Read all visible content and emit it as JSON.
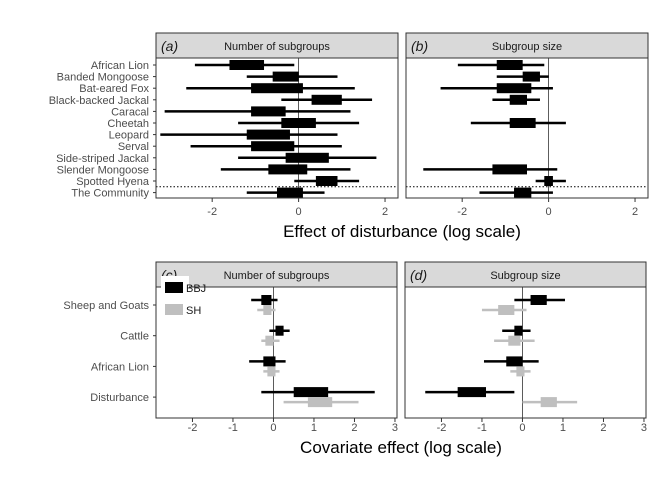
{
  "chart_data": [
    {
      "type": "forest",
      "xlabel": "Effect of disturbance (log scale)",
      "categories": [
        "African Lion",
        "Banded Mongoose",
        "Bat-eared Fox",
        "Black-backed Jackal",
        "Caracal",
        "Cheetah",
        "Leopard",
        "Serval",
        "Side-striped Jackal",
        "Slender Mongoose",
        "Spotted Hyena",
        "The Community"
      ],
      "xlim": [
        -3.3,
        2.3
      ],
      "xticks": [
        -2,
        0,
        2
      ],
      "separator_after_index": 10,
      "panels": [
        {
          "letter": "(a)",
          "title": "Number of subgroups",
          "rows": [
            {
              "estimate": -1.2,
              "inner": [
                -1.6,
                -0.8
              ],
              "outer": [
                -2.4,
                -0.1
              ]
            },
            {
              "estimate": -0.3,
              "inner": [
                -0.6,
                0.0
              ],
              "outer": [
                -1.2,
                0.9
              ]
            },
            {
              "estimate": -0.5,
              "inner": [
                -1.1,
                0.1
              ],
              "outer": [
                -2.6,
                1.3
              ]
            },
            {
              "estimate": 0.6,
              "inner": [
                0.3,
                1.0
              ],
              "outer": [
                -0.4,
                1.7
              ]
            },
            {
              "estimate": -0.7,
              "inner": [
                -1.1,
                -0.3
              ],
              "outer": [
                -3.1,
                1.2
              ]
            },
            {
              "estimate": 0.0,
              "inner": [
                -0.4,
                0.4
              ],
              "outer": [
                -1.4,
                1.4
              ]
            },
            {
              "estimate": -0.7,
              "inner": [
                -1.2,
                -0.2
              ],
              "outer": [
                -3.2,
                0.9
              ]
            },
            {
              "estimate": -0.6,
              "inner": [
                -1.1,
                -0.1
              ],
              "outer": [
                -2.5,
                1.0
              ]
            },
            {
              "estimate": 0.2,
              "inner": [
                -0.3,
                0.7
              ],
              "outer": [
                -1.4,
                1.8
              ]
            },
            {
              "estimate": -0.3,
              "inner": [
                -0.7,
                0.2
              ],
              "outer": [
                -1.8,
                1.2
              ]
            },
            {
              "estimate": 0.6,
              "inner": [
                0.4,
                0.9
              ],
              "outer": [
                -0.1,
                1.4
              ]
            },
            {
              "estimate": -0.2,
              "inner": [
                -0.5,
                0.1
              ],
              "outer": [
                -1.2,
                0.6
              ]
            }
          ]
        },
        {
          "letter": "(b)",
          "title": "Subgroup size",
          "rows": [
            {
              "estimate": -0.9,
              "inner": [
                -1.2,
                -0.6
              ],
              "outer": [
                -2.1,
                -0.1
              ]
            },
            {
              "estimate": -0.4,
              "inner": [
                -0.6,
                -0.2
              ],
              "outer": [
                -1.2,
                0.0
              ]
            },
            {
              "estimate": -0.8,
              "inner": [
                -1.2,
                -0.4
              ],
              "outer": [
                -2.5,
                0.1
              ]
            },
            {
              "estimate": -0.7,
              "inner": [
                -0.9,
                -0.5
              ],
              "outer": [
                -1.3,
                -0.2
              ]
            },
            {
              "estimate": null,
              "inner": null,
              "outer": null
            },
            {
              "estimate": -0.6,
              "inner": [
                -0.9,
                -0.3
              ],
              "outer": [
                -1.8,
                0.4
              ]
            },
            {
              "estimate": null,
              "inner": null,
              "outer": null
            },
            {
              "estimate": null,
              "inner": null,
              "outer": null
            },
            {
              "estimate": null,
              "inner": null,
              "outer": null
            },
            {
              "estimate": -0.9,
              "inner": [
                -1.3,
                -0.5
              ],
              "outer": [
                -2.9,
                0.2
              ]
            },
            {
              "estimate": 0.0,
              "inner": [
                -0.1,
                0.1
              ],
              "outer": [
                -0.3,
                0.4
              ]
            },
            {
              "estimate": -0.6,
              "inner": [
                -0.8,
                -0.4
              ],
              "outer": [
                -1.6,
                0.1
              ]
            }
          ]
        }
      ]
    },
    {
      "type": "forest",
      "xlabel": "Covariate effect (log scale)",
      "categories": [
        "Sheep and Goats",
        "Cattle",
        "African Lion",
        "Disturbance"
      ],
      "xlim": [
        -2.9,
        3.05
      ],
      "xticks": [
        -2,
        -1,
        0,
        1,
        2,
        3
      ],
      "legend": {
        "placement": "top-left",
        "entries": [
          {
            "name": "BBJ",
            "color": "#000000"
          },
          {
            "name": "SH",
            "color": "#bfbfbf"
          }
        ]
      },
      "panels": [
        {
          "letter": "(c)",
          "title": "Number of subgroups",
          "rows": [
            {
              "BBJ": {
                "estimate": -0.2,
                "inner": [
                  -0.3,
                  -0.05
                ],
                "outer": [
                  -0.55,
                  0.1
                ]
              },
              "SH": {
                "estimate": -0.15,
                "inner": [
                  -0.25,
                  -0.05
                ],
                "outer": [
                  -0.4,
                  0.05
                ]
              }
            },
            {
              "BBJ": {
                "estimate": 0.15,
                "inner": [
                  0.05,
                  0.25
                ],
                "outer": [
                  -0.1,
                  0.4
                ]
              },
              "SH": {
                "estimate": -0.1,
                "inner": [
                  -0.2,
                  0.0
                ],
                "outer": [
                  -0.3,
                  0.15
                ]
              }
            },
            {
              "BBJ": {
                "estimate": -0.1,
                "inner": [
                  -0.25,
                  0.05
                ],
                "outer": [
                  -0.6,
                  0.3
                ]
              },
              "SH": {
                "estimate": -0.05,
                "inner": [
                  -0.15,
                  0.05
                ],
                "outer": [
                  -0.25,
                  0.15
                ]
              }
            },
            {
              "BBJ": {
                "estimate": 0.9,
                "inner": [
                  0.5,
                  1.35
                ],
                "outer": [
                  -0.3,
                  2.5
                ]
              },
              "SH": {
                "estimate": 1.1,
                "inner": [
                  0.85,
                  1.45
                ],
                "outer": [
                  0.25,
                  2.1
                ]
              }
            }
          ]
        },
        {
          "letter": "(d)",
          "title": "Subgroup size",
          "rows": [
            {
              "BBJ": {
                "estimate": 0.4,
                "inner": [
                  0.2,
                  0.6
                ],
                "outer": [
                  -0.2,
                  1.05
                ]
              },
              "SH": {
                "estimate": -0.4,
                "inner": [
                  -0.6,
                  -0.2
                ],
                "outer": [
                  -1.0,
                  0.1
                ]
              }
            },
            {
              "BBJ": {
                "estimate": -0.1,
                "inner": [
                  -0.2,
                  0.0
                ],
                "outer": [
                  -0.5,
                  0.2
                ]
              },
              "SH": {
                "estimate": -0.2,
                "inner": [
                  -0.35,
                  -0.05
                ],
                "outer": [
                  -0.7,
                  0.3
                ]
              }
            },
            {
              "BBJ": {
                "estimate": -0.2,
                "inner": [
                  -0.4,
                  0.0
                ],
                "outer": [
                  -0.95,
                  0.4
                ]
              },
              "SH": {
                "estimate": -0.05,
                "inner": [
                  -0.15,
                  0.05
                ],
                "outer": [
                  -0.3,
                  0.2
                ]
              }
            },
            {
              "BBJ": {
                "estimate": -1.3,
                "inner": [
                  -1.6,
                  -0.9
                ],
                "outer": [
                  -2.4,
                  -0.2
                ]
              },
              "SH": {
                "estimate": 0.65,
                "inner": [
                  0.45,
                  0.85
                ],
                "outer": [
                  0.0,
                  1.35
                ]
              }
            }
          ]
        }
      ]
    }
  ]
}
